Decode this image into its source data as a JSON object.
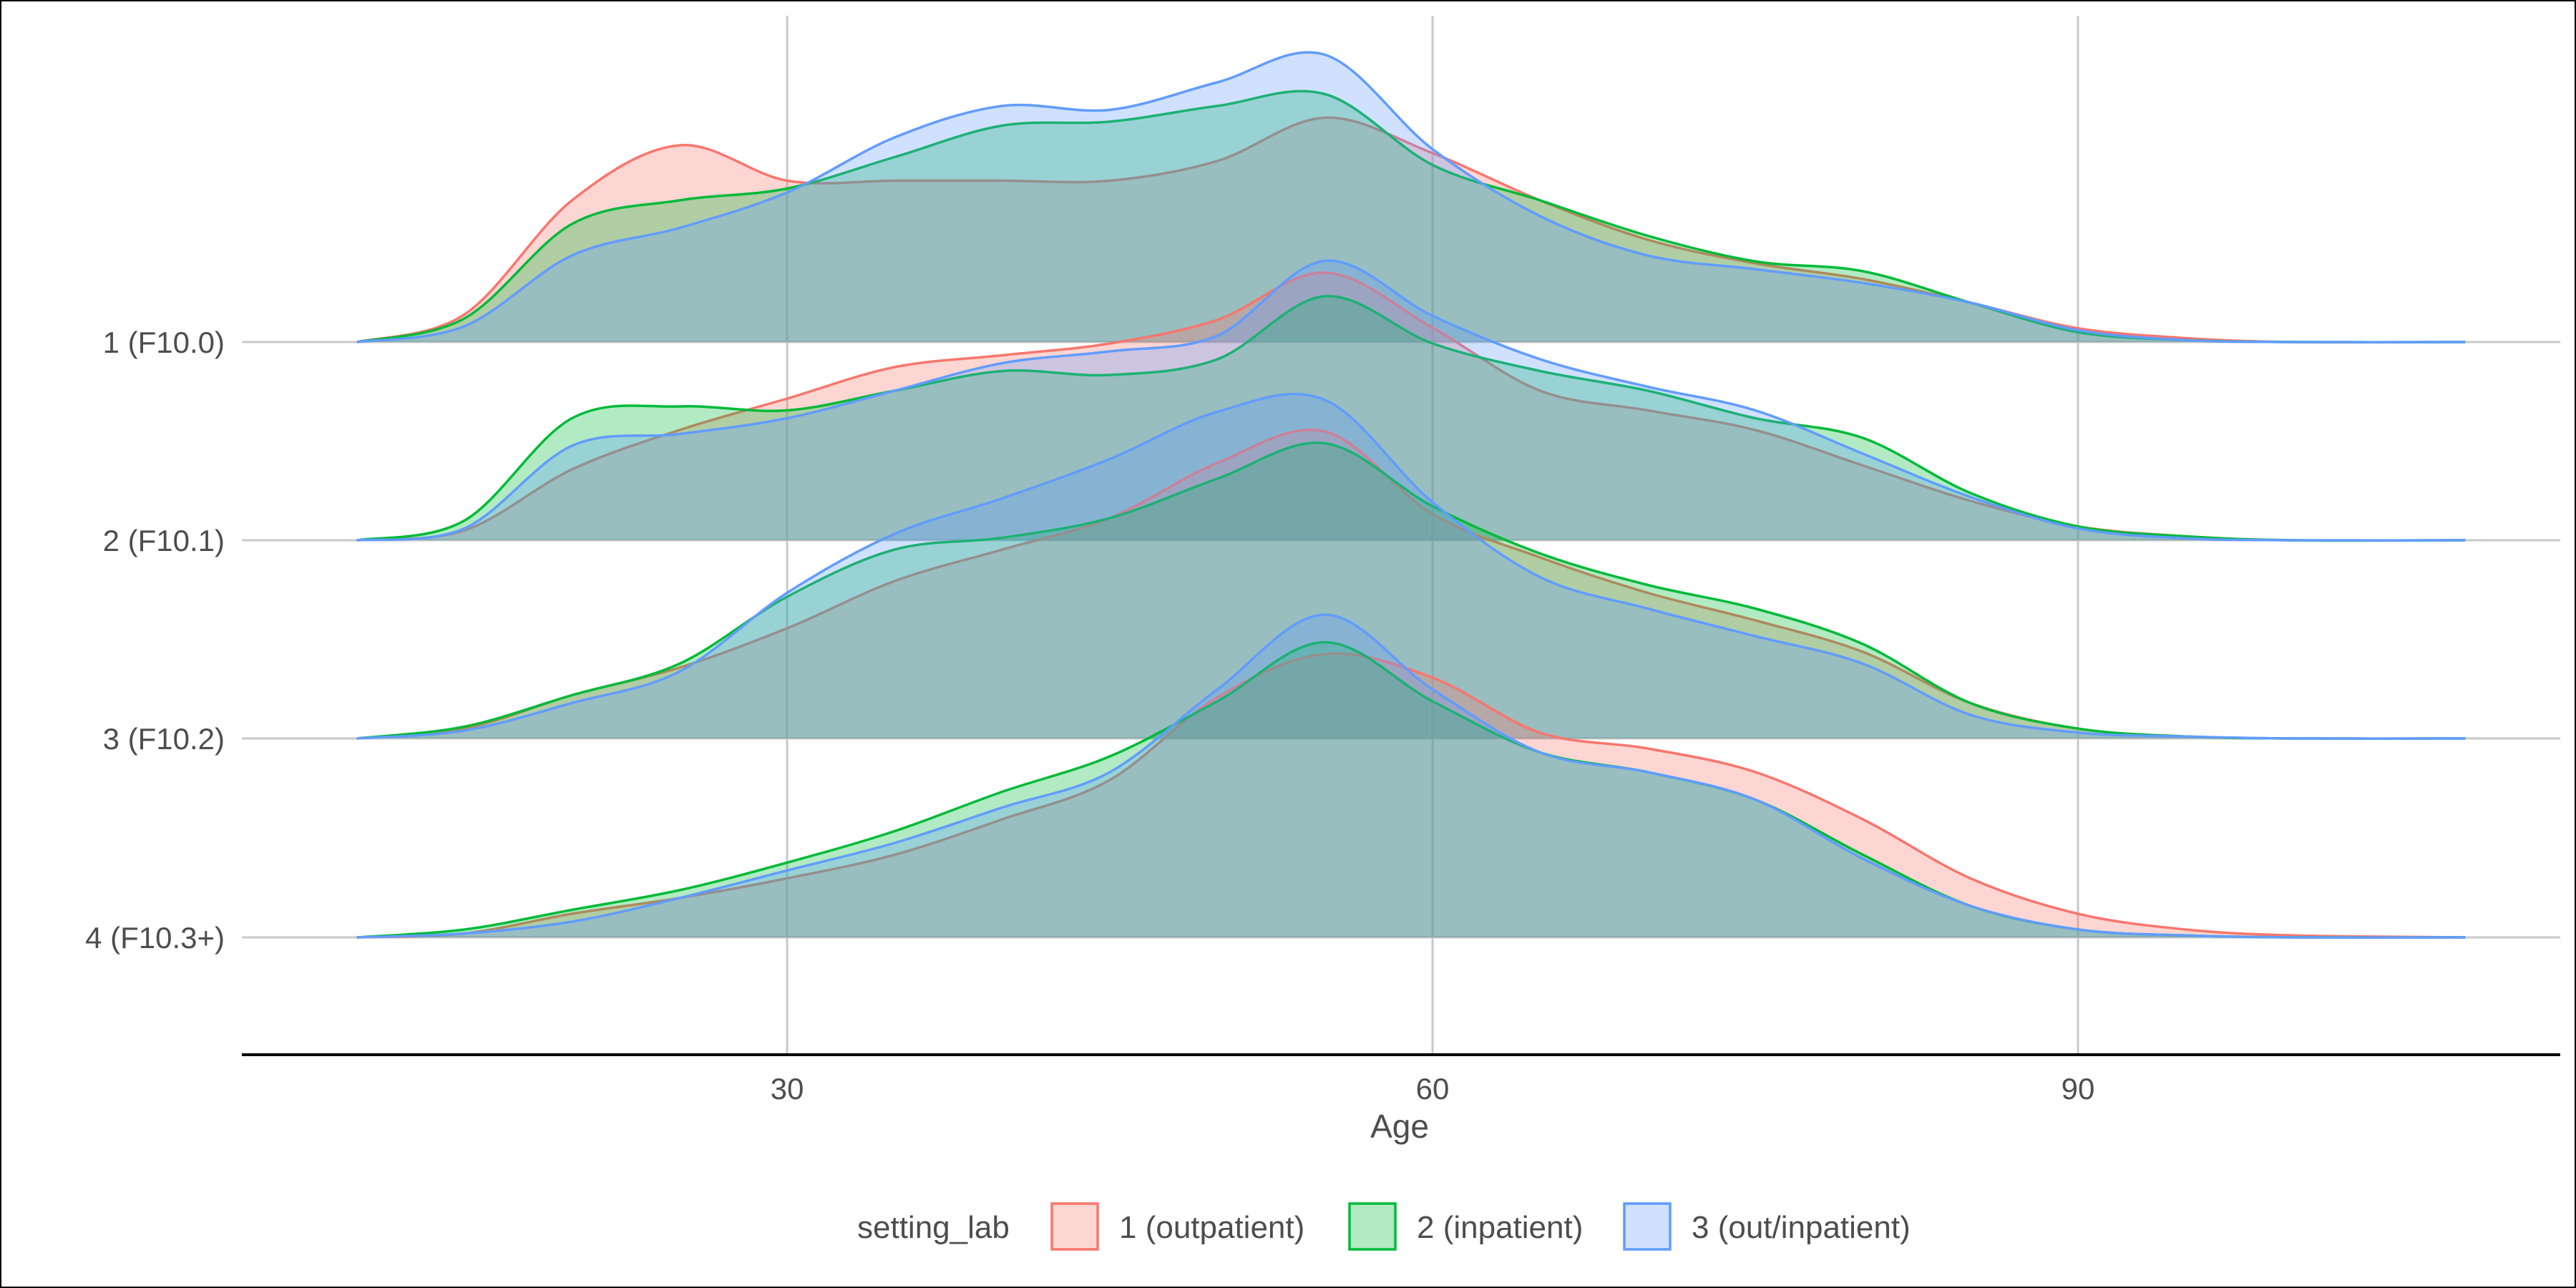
{
  "chart_data": {
    "type": "ridgeline",
    "xlabel": "Age",
    "x_ticks": [
      30,
      60,
      90
    ],
    "xlim": [
      4.5,
      112
    ],
    "grid": "vertical major lines and horizontal baselines",
    "categories": [
      "1 (F10.0)",
      "2 (F10.1)",
      "3 (F10.2)",
      "4 (F10.3+)"
    ],
    "x": [
      10,
      15,
      20,
      25,
      30,
      35,
      40,
      45,
      50,
      55,
      60,
      65,
      70,
      75,
      80,
      85,
      90,
      95,
      100,
      108
    ],
    "legend": {
      "title": "setting_lab",
      "position": "bottom"
    },
    "series": [
      {
        "name": "1 (outpatient)",
        "color": "#F8766D",
        "fill": "#F8766D",
        "densities": {
          "1 (F10.0)": [
            0,
            0.14,
            0.72,
            1.0,
            0.82,
            0.82,
            0.82,
            0.82,
            0.92,
            1.14,
            0.96,
            0.72,
            0.52,
            0.4,
            0.32,
            0.2,
            0.07,
            0.02,
            0,
            0
          ],
          "2 (F10.1)": [
            0,
            0.05,
            0.36,
            0.56,
            0.72,
            0.88,
            0.94,
            1.0,
            1.12,
            1.36,
            1.08,
            0.76,
            0.66,
            0.56,
            0.38,
            0.2,
            0.07,
            0.02,
            0,
            0
          ],
          "3 (F10.2)": [
            0,
            0.05,
            0.22,
            0.36,
            0.56,
            0.8,
            0.96,
            1.12,
            1.4,
            1.56,
            1.14,
            0.92,
            0.74,
            0.6,
            0.44,
            0.18,
            0.05,
            0.01,
            0,
            0
          ],
          "4 (F10.3+)": [
            0,
            0.02,
            0.12,
            0.2,
            0.3,
            0.42,
            0.6,
            0.8,
            1.22,
            1.44,
            1.32,
            1.04,
            0.96,
            0.84,
            0.6,
            0.3,
            0.12,
            0.04,
            0.01,
            0
          ]
        }
      },
      {
        "name": "2 (inpatient)",
        "color": "#00BA38",
        "fill": "#00BA38",
        "densities": {
          "1 (F10.0)": [
            0,
            0.12,
            0.6,
            0.72,
            0.78,
            0.94,
            1.1,
            1.12,
            1.2,
            1.26,
            0.9,
            0.72,
            0.54,
            0.41,
            0.36,
            0.2,
            0.05,
            0.01,
            0,
            0
          ],
          "2 (F10.1)": [
            0,
            0.1,
            0.62,
            0.68,
            0.66,
            0.76,
            0.86,
            0.84,
            0.92,
            1.24,
            1.0,
            0.86,
            0.76,
            0.62,
            0.52,
            0.24,
            0.07,
            0.02,
            0,
            0
          ],
          "3 (F10.2)": [
            0,
            0.06,
            0.22,
            0.38,
            0.72,
            0.96,
            1.02,
            1.12,
            1.32,
            1.5,
            1.18,
            0.94,
            0.78,
            0.66,
            0.48,
            0.18,
            0.05,
            0.01,
            0,
            0
          ],
          "4 (F10.3+)": [
            0,
            0.04,
            0.14,
            0.24,
            0.38,
            0.54,
            0.74,
            0.92,
            1.2,
            1.5,
            1.2,
            0.94,
            0.84,
            0.7,
            0.42,
            0.16,
            0.04,
            0.01,
            0,
            0
          ]
        }
      },
      {
        "name": "3 (out/inpatient)",
        "color": "#619CFF",
        "fill": "#619CFF",
        "densities": {
          "1 (F10.0)": [
            0,
            0.08,
            0.44,
            0.58,
            0.76,
            1.04,
            1.2,
            1.18,
            1.32,
            1.46,
            0.98,
            0.64,
            0.44,
            0.37,
            0.3,
            0.2,
            0.06,
            0.01,
            0,
            0
          ],
          "2 (F10.1)": [
            0,
            0.06,
            0.48,
            0.54,
            0.62,
            0.76,
            0.9,
            0.96,
            1.04,
            1.42,
            1.14,
            0.92,
            0.78,
            0.66,
            0.44,
            0.22,
            0.06,
            0.01,
            0,
            0
          ],
          "3 (F10.2)": [
            0,
            0.04,
            0.18,
            0.34,
            0.74,
            1.04,
            1.22,
            1.42,
            1.66,
            1.72,
            1.2,
            0.82,
            0.66,
            0.52,
            0.38,
            0.12,
            0.03,
            0.01,
            0,
            0
          ],
          "4 (F10.3+)": [
            0,
            0.02,
            0.08,
            0.2,
            0.34,
            0.48,
            0.66,
            0.84,
            1.26,
            1.64,
            1.26,
            0.94,
            0.84,
            0.7,
            0.4,
            0.16,
            0.04,
            0.01,
            0,
            0
          ]
        }
      }
    ],
    "overlap_color": "#99BABC"
  }
}
